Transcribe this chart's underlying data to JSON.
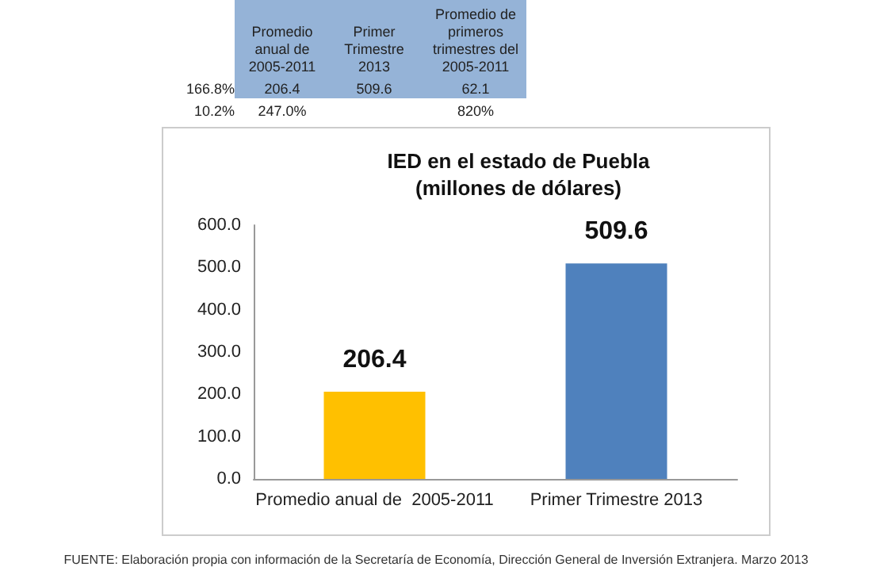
{
  "chart_data": [
    {
      "type": "other",
      "annotations": [
        "Promedio anual de 2005-2011",
        "Primer Trimestre 2013",
        "Promedio de primeros trimestres del 2005-2011",
        "166.8%",
        "206.4",
        "509.6",
        "62.1",
        "10.2%",
        "247.0%",
        "820%"
      ]
    },
    {
      "type": "bar",
      "title": "IED en el estado de Puebla\n(millones de dólares)",
      "categories": [
        "Promedio anual de  2005-2011",
        "Primer Trimestre 2013"
      ],
      "values": [
        206.4,
        509.6
      ],
      "colors": [
        "#ffc000",
        "#4f81bd"
      ],
      "ylim": [
        0,
        600
      ],
      "yticks": [
        {
          "value": 0,
          "label": "0.0"
        },
        {
          "value": 100,
          "label": "100.0"
        },
        {
          "value": 200,
          "label": "200.0"
        },
        {
          "value": 300,
          "label": "300.0"
        },
        {
          "value": 400,
          "label": "400.0"
        },
        {
          "value": 500,
          "label": "500.0"
        },
        {
          "value": 600,
          "label": "600.0"
        }
      ],
      "data_labels": true,
      "grid": false,
      "annotations": [
        "FUENTE: Elaboración propia con información de la Secretaría de Economía, Dirección General de Inversión Extranjera. Marzo 2013"
      ]
    }
  ]
}
